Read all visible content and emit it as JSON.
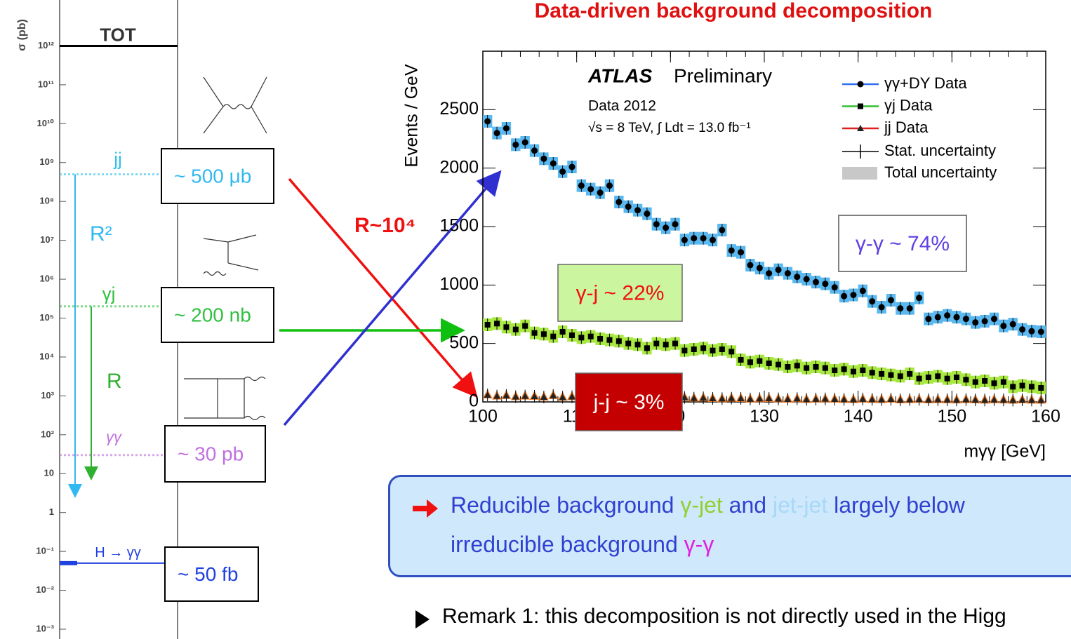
{
  "title": "Data-driven background decomposition",
  "chart_data": [
    {
      "type": "levels",
      "ylabel": "σ (pb)",
      "log": true,
      "ylim": [
        0.001,
        10000000000000.0
      ],
      "yticks": [
        {
          "value": 1000000000000.0,
          "label": "10¹²"
        },
        {
          "value": 100000000000.0,
          "label": "10¹¹"
        },
        {
          "value": 10000000000.0,
          "label": "10¹⁰"
        },
        {
          "value": 1000000000.0,
          "label": "10⁹"
        },
        {
          "value": 100000000.0,
          "label": "10⁸"
        },
        {
          "value": 10000000.0,
          "label": "10⁷"
        },
        {
          "value": 1000000.0,
          "label": "10⁶"
        },
        {
          "value": 100000.0,
          "label": "10⁵"
        },
        {
          "value": 10000.0,
          "label": "10⁴"
        },
        {
          "value": 1000,
          "label": "10³"
        },
        {
          "value": 100,
          "label": "10²"
        },
        10,
        1,
        {
          "value": 0.1,
          "label": "10⁻¹"
        },
        {
          "value": 0.01,
          "label": "10⁻²"
        },
        {
          "value": 0.001,
          "label": "10⁻³"
        }
      ],
      "categories": [
        "TOT",
        "jj",
        "γj",
        "γγ",
        "H → γγ"
      ],
      "values": [
        1000000000000.0,
        500000000.0,
        200000.0,
        30,
        0.05
      ],
      "value_labels": [
        null,
        "~ 500 μb",
        "~ 200 nb",
        "~ 30 pb",
        "~ 50 fb"
      ],
      "colors": [
        "#000000",
        "#30c0e8",
        "#30c040",
        "#c070e0",
        "#2040e0"
      ],
      "annotations": [
        "R²",
        "R",
        "R~10⁴"
      ]
    },
    {
      "type": "scatter",
      "ylabel": "Events / GeV",
      "xlabel": "mγγ [GeV]",
      "xlim": [
        100,
        160
      ],
      "ylim": [
        0,
        3000
      ],
      "xticks": [
        100,
        110,
        120,
        130,
        140,
        150,
        160
      ],
      "yticks": [
        0,
        500,
        1000,
        1500,
        2000,
        2500
      ],
      "annotations": [
        "ATLAS",
        "Preliminary",
        "Data 2012",
        "√s = 8 TeV, ∫ Ldt = 13.0 fb⁻¹"
      ],
      "legend_extra": [
        "Stat. uncertainty",
        "Total uncertainty"
      ],
      "x": [
        100.5,
        101.5,
        102.5,
        103.5,
        104.5,
        105.5,
        106.5,
        107.5,
        108.5,
        109.5,
        110.5,
        111.5,
        112.5,
        113.5,
        114.5,
        115.5,
        116.5,
        117.5,
        118.5,
        119.5,
        120.5,
        121.5,
        122.5,
        123.5,
        124.5,
        125.5,
        126.5,
        127.5,
        128.5,
        129.5,
        130.5,
        131.5,
        132.5,
        133.5,
        134.5,
        135.5,
        136.5,
        137.5,
        138.5,
        139.5,
        140.5,
        141.5,
        142.5,
        143.5,
        144.5,
        145.5,
        146.5,
        147.5,
        148.5,
        149.5,
        150.5,
        151.5,
        152.5,
        153.5,
        154.5,
        155.5,
        156.5,
        157.5,
        158.5,
        159.5
      ],
      "series": [
        {
          "name": "γγ+DY Data",
          "color": "#3070f0",
          "band_color": "#5ab8f0",
          "values": [
            2400,
            2300,
            2340,
            2200,
            2220,
            2150,
            2080,
            2040,
            1970,
            2010,
            1850,
            1820,
            1790,
            1850,
            1710,
            1670,
            1640,
            1610,
            1520,
            1490,
            1520,
            1385,
            1400,
            1400,
            1385,
            1470,
            1295,
            1280,
            1170,
            1145,
            1100,
            1130,
            1100,
            1070,
            1050,
            1025,
            1010,
            980,
            905,
            915,
            950,
            860,
            810,
            870,
            800,
            800,
            890,
            710,
            725,
            740,
            725,
            710,
            680,
            690,
            710,
            650,
            665,
            620,
            605,
            600
          ],
          "box": "γ-γ ~ 74%"
        },
        {
          "name": "γj Data",
          "color": "#30c030",
          "band_color": "#a8e840",
          "values": [
            660,
            670,
            640,
            620,
            650,
            590,
            580,
            560,
            600,
            570,
            550,
            560,
            540,
            530,
            520,
            500,
            490,
            460,
            500,
            490,
            500,
            440,
            450,
            460,
            440,
            450,
            430,
            360,
            340,
            350,
            330,
            320,
            300,
            310,
            290,
            300,
            290,
            270,
            280,
            260,
            270,
            250,
            240,
            230,
            220,
            240,
            200,
            210,
            220,
            200,
            210,
            190,
            170,
            180,
            160,
            170,
            130,
            140,
            130,
            120
          ],
          "box": "γ-j ~ 22%"
        },
        {
          "name": "jj Data",
          "color": "#e02020",
          "band_color": "#f08030",
          "values": [
            60,
            50,
            55,
            45,
            50,
            48,
            42,
            55,
            40,
            45,
            50,
            38,
            42,
            45,
            40,
            35,
            38,
            42,
            30,
            40,
            35,
            38,
            32,
            35,
            30,
            28,
            32,
            30,
            25,
            28,
            30,
            26,
            24,
            28,
            22,
            25,
            26,
            24,
            22,
            20,
            25,
            22,
            20,
            24,
            18,
            20,
            22,
            18,
            20,
            19,
            17,
            20,
            18,
            16,
            19,
            17,
            15,
            18,
            16,
            15
          ],
          "box": "j-j ~ 3%"
        }
      ]
    }
  ],
  "callout": {
    "lines": [
      [
        {
          "text": "Reducible background ",
          "color": "#3040d0"
        },
        {
          "text": "γ-jet",
          "color": "#90d030"
        },
        {
          "text": " and ",
          "color": "#3040d0"
        },
        {
          "text": "jet-jet",
          "color": "#a8d8f8"
        },
        {
          "text": " largely below",
          "color": "#3040d0"
        }
      ],
      [
        {
          "text": "irreducible background ",
          "color": "#3040d0"
        },
        {
          "text": "γ-γ",
          "color": "#e020e0"
        }
      ]
    ]
  },
  "remark": "Remark 1: this decomposition is not directly used in the Higg"
}
